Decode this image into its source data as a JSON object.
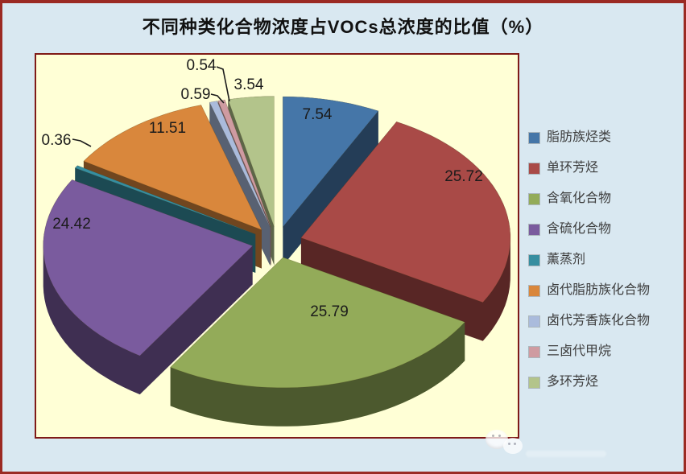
{
  "title": "不同种类化合物浓度占VOCs总浓度的比值（%）",
  "chart_data": {
    "type": "pie",
    "style": "3d-exploded",
    "title": "不同种类化合物浓度占VOCs总浓度的比值（%）",
    "unit": "%",
    "legend_position": "right",
    "clockwise": true,
    "start_angle_deg": -90,
    "categories": [
      "脂肪族烃类",
      "单环芳烃",
      "含氧化合物",
      "含硫化合物",
      "薰蒸剂",
      "卤代脂肪族化合物",
      "卤代芳香族化合物",
      "三卤代甲烷",
      "多环芳烃"
    ],
    "values": [
      7.54,
      25.72,
      25.79,
      24.42,
      0.36,
      11.51,
      0.59,
      0.54,
      3.54
    ],
    "data_labels": [
      "7.54",
      "25.72",
      "25.79",
      "24.42",
      "0.36",
      "11.51",
      "0.59",
      "0.54",
      "3.54"
    ],
    "colors": [
      "#4576a8",
      "#a94a47",
      "#93ab59",
      "#7a5b9e",
      "#368ea0",
      "#d9873c",
      "#aabbdc",
      "#cf9ba1",
      "#b3c48b"
    ]
  },
  "colors": {
    "page_bg": "#d9e8f1",
    "page_border": "#9b2a23",
    "plot_bg": "#ffffd6",
    "plot_border": "#7f1a17",
    "label_text": "#1b1b1b",
    "legend_text": "#3d3d3d"
  }
}
